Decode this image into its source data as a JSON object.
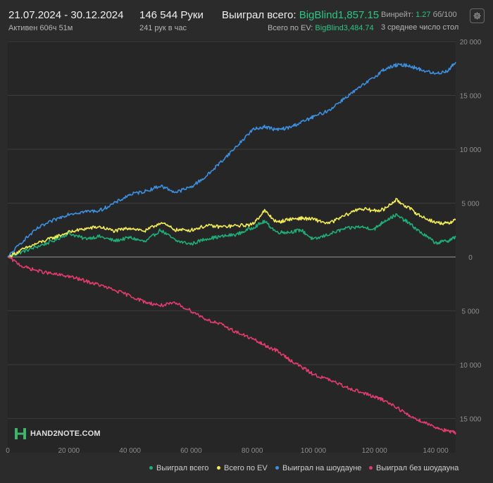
{
  "header": {
    "date_range": "21.07.2024 - 30.12.2024",
    "active_time": "Активен 606ч 51м",
    "hands_total": "146 544 Руки",
    "hands_per_hour": "241 рук в час",
    "won_total_label": "Выиграл всего:",
    "won_total_value": "BigBlind1,857.15",
    "ev_total_label": "Всего по EV:",
    "ev_total_value": "BigBlind3,484.74",
    "winrate_label": "Винрейт:",
    "winrate_value": "1.27",
    "winrate_unit": "бб/100",
    "avg_note": "3 среднее число стол"
  },
  "logo_text": "HAND2NOTE.COM",
  "icons": {
    "settings": "gear-icon",
    "logo": "hand2note-logo-icon"
  },
  "colors": {
    "background": "#2b2b2b",
    "green": "#1fae78",
    "yellow": "#f2ec5a",
    "blue": "#3d8fe0",
    "red": "#e23b70",
    "accent_text": "#2ec486"
  },
  "chart_data": {
    "type": "line",
    "title": "",
    "xlabel": "",
    "ylabel": "",
    "xlim": [
      0,
      146544
    ],
    "ylim": [
      -17000,
      20000
    ],
    "x_ticks": [
      0,
      20000,
      40000,
      60000,
      80000,
      100000,
      120000,
      140000
    ],
    "x_tick_labels": [
      "0",
      "20 000",
      "40 000",
      "60 000",
      "80 000",
      "100 000",
      "120 000",
      "140 000"
    ],
    "y_ticks": [
      20000,
      15000,
      10000,
      5000,
      0,
      -5000,
      -10000,
      -15000
    ],
    "y_tick_labels": [
      "20 000",
      "15 000",
      "10 000",
      "5 000",
      "0",
      "5 000",
      "10 000",
      "15 000"
    ],
    "grid": true,
    "legend_position": "bottom-right",
    "x": [
      0,
      5000,
      10000,
      15000,
      20000,
      25000,
      30000,
      35000,
      40000,
      45000,
      50000,
      55000,
      60000,
      65000,
      70000,
      75000,
      80000,
      84000,
      88000,
      92000,
      96000,
      100000,
      105000,
      110000,
      115000,
      120000,
      123000,
      127000,
      131000,
      135000,
      140000,
      144000,
      146544
    ],
    "series": [
      {
        "name": "Выиграл всего",
        "color": "#1fae78",
        "values": [
          0,
          500,
          1000,
          1500,
          2200,
          1700,
          1900,
          1500,
          1800,
          1400,
          2500,
          1500,
          1200,
          1700,
          1900,
          2100,
          2700,
          3300,
          2300,
          2300,
          2500,
          1600,
          2100,
          2600,
          2800,
          2600,
          3300,
          3900,
          3200,
          2300,
          1300,
          1500,
          1850
        ]
      },
      {
        "name": "Всего по EV",
        "color": "#f2ec5a",
        "values": [
          0,
          700,
          1300,
          1800,
          2300,
          2600,
          2800,
          2400,
          2700,
          2400,
          3200,
          2500,
          2500,
          2900,
          2800,
          2900,
          3000,
          4300,
          3200,
          3500,
          3600,
          3500,
          3100,
          3800,
          4500,
          4300,
          4400,
          5300,
          4600,
          3800,
          3200,
          3100,
          3480
        ]
      },
      {
        "name": "Выиграл на шоудауне",
        "color": "#3d8fe0",
        "values": [
          0,
          1500,
          2700,
          3400,
          4000,
          4200,
          4300,
          5000,
          5800,
          6100,
          6600,
          6000,
          6500,
          7500,
          8900,
          10300,
          11800,
          12100,
          11800,
          12000,
          12500,
          13000,
          13600,
          14700,
          15700,
          16700,
          17400,
          17800,
          17800,
          17400,
          17000,
          17300,
          18100
        ]
      },
      {
        "name": "Выиграл без шоудауна",
        "color": "#e23b70",
        "values": [
          0,
          -900,
          -1300,
          -1600,
          -1800,
          -2200,
          -2600,
          -3100,
          -3600,
          -4200,
          -4500,
          -4300,
          -5000,
          -5800,
          -6300,
          -7000,
          -7600,
          -8200,
          -8700,
          -9500,
          -10200,
          -10900,
          -11400,
          -12000,
          -12500,
          -13000,
          -13300,
          -13900,
          -14700,
          -15200,
          -15800,
          -16200,
          -16300
        ]
      }
    ]
  }
}
